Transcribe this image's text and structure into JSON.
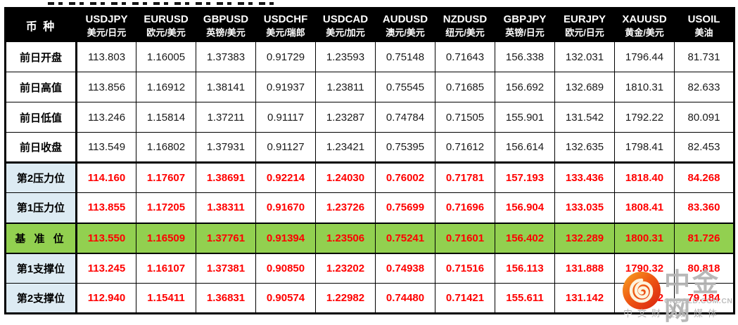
{
  "colors": {
    "header_bg": "#000000",
    "header_text": "#ffffff",
    "label_blue_bg": "#ddebf3",
    "pivot_green_bg": "#92d050",
    "value_red": "#ff0000",
    "value_black": "#1a1a1a",
    "watermark_gray": "#b2b2b2",
    "logo_red": "#e63312",
    "logo_gold": "#f7a823"
  },
  "chart_data": {
    "type": "table",
    "corner_label": "币 种",
    "columns": [
      {
        "code": "USDJPY",
        "name": "美元/日元"
      },
      {
        "code": "EURUSD",
        "name": "欧元/美元"
      },
      {
        "code": "GBPUSD",
        "name": "英镑/美元"
      },
      {
        "code": "USDCHF",
        "name": "美元/瑞郎"
      },
      {
        "code": "USDCAD",
        "name": "美元/加元"
      },
      {
        "code": "AUDUSD",
        "name": "澳元/美元"
      },
      {
        "code": "NZDUSD",
        "name": "纽元/美元"
      },
      {
        "code": "GBPJPY",
        "name": "英镑/日元"
      },
      {
        "code": "EURJPY",
        "name": "欧元/日元"
      },
      {
        "code": "XAUUSD",
        "name": "黄金/美元"
      },
      {
        "code": "USOIL",
        "name": "美油"
      }
    ],
    "rows": [
      {
        "label": "前日开盘",
        "style": "plain",
        "thick_top": false,
        "values": [
          "113.803",
          "1.16005",
          "1.37383",
          "0.91729",
          "1.23593",
          "0.75148",
          "0.71643",
          "156.338",
          "132.031",
          "1796.44",
          "81.731"
        ]
      },
      {
        "label": "前日高值",
        "style": "plain",
        "thick_top": false,
        "values": [
          "113.856",
          "1.16912",
          "1.38141",
          "0.91937",
          "1.23811",
          "0.75545",
          "0.71685",
          "156.692",
          "132.689",
          "1810.31",
          "82.633"
        ]
      },
      {
        "label": "前日低值",
        "style": "plain",
        "thick_top": false,
        "values": [
          "113.246",
          "1.15814",
          "1.37211",
          "0.91117",
          "1.23287",
          "0.74784",
          "0.71505",
          "155.901",
          "131.542",
          "1792.22",
          "80.091"
        ]
      },
      {
        "label": "前日收盘",
        "style": "plain",
        "thick_top": false,
        "values": [
          "113.549",
          "1.16802",
          "1.37931",
          "0.91127",
          "1.23421",
          "0.75395",
          "0.71612",
          "156.614",
          "132.635",
          "1798.41",
          "82.453"
        ]
      },
      {
        "label": "第2压力位",
        "style": "level",
        "thick_top": true,
        "values": [
          "114.160",
          "1.17607",
          "1.38691",
          "0.92214",
          "1.24030",
          "0.76002",
          "0.71781",
          "157.193",
          "133.436",
          "1818.40",
          "84.268"
        ]
      },
      {
        "label": "第1压力位",
        "style": "level",
        "thick_top": false,
        "values": [
          "113.855",
          "1.17205",
          "1.38311",
          "0.91670",
          "1.23726",
          "0.75699",
          "0.71696",
          "156.904",
          "133.035",
          "1808.41",
          "83.360"
        ]
      },
      {
        "label": "基 准 位",
        "style": "pivot",
        "thick_top": false,
        "values": [
          "113.550",
          "1.16509",
          "1.37761",
          "0.91394",
          "1.23506",
          "0.75241",
          "0.71601",
          "156.402",
          "132.289",
          "1800.31",
          "81.726"
        ]
      },
      {
        "label": "第1支撑位",
        "style": "level",
        "thick_top": false,
        "values": [
          "113.245",
          "1.16107",
          "1.37381",
          "0.90850",
          "1.23202",
          "0.74938",
          "0.71516",
          "156.113",
          "131.888",
          "1790.32",
          "80.818"
        ]
      },
      {
        "label": "第2支撑位",
        "style": "level",
        "thick_top": false,
        "values": [
          "112.940",
          "1.15411",
          "1.36831",
          "0.90574",
          "1.22982",
          "0.74480",
          "0.71421",
          "155.611",
          "131.142",
          "1782.22",
          "79.184"
        ]
      }
    ]
  },
  "watermark": {
    "brand": "中金网",
    "domain": "CNGOLD.COM.CN",
    "tagline": "中文财经新媒体"
  }
}
